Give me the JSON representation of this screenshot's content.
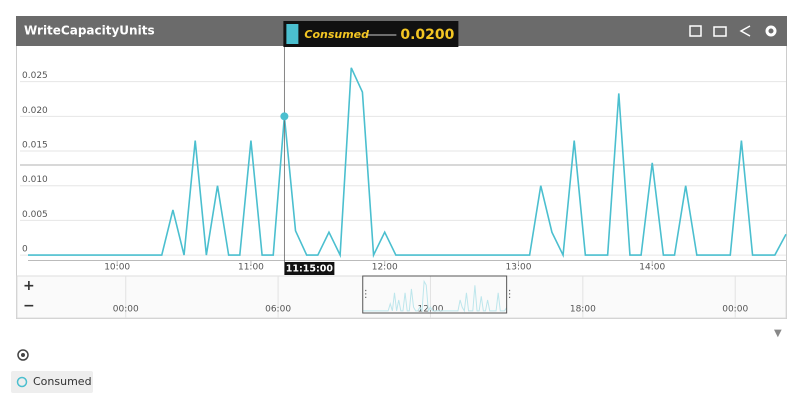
{
  "chart_data": {
    "type": "line",
    "title": "WriteCapacityUnits",
    "x": [
      560,
      565,
      570,
      575,
      580,
      585,
      590,
      595,
      600,
      605,
      610,
      615,
      620,
      625,
      630,
      635,
      640,
      645,
      650,
      655,
      660,
      665,
      670,
      675,
      680,
      685,
      690,
      695,
      700,
      705,
      710,
      715,
      720,
      725,
      730,
      735,
      740,
      745,
      750,
      755,
      760,
      765,
      770,
      775,
      780,
      785,
      790,
      795,
      800,
      805,
      810,
      815,
      820,
      825,
      830,
      835,
      840,
      845,
      850,
      855,
      860,
      865,
      870,
      875,
      880,
      885,
      890,
      895,
      900
    ],
    "series": [
      {
        "name": "Consumed",
        "color": "#4bbfcf",
        "values": [
          0,
          0,
          0,
          0,
          0,
          0,
          0,
          0,
          0,
          0,
          0,
          0,
          0,
          0.0065,
          0,
          0.0165,
          0,
          0.01,
          0,
          0,
          0.0165,
          0,
          0,
          0.02,
          0.0035,
          0,
          0,
          0.0033,
          0,
          0.027,
          0.0235,
          0,
          0.0033,
          0,
          0,
          0,
          0,
          0,
          0,
          0,
          0,
          0,
          0,
          0,
          0,
          0,
          0.01,
          0.0033,
          0,
          0.0165,
          0,
          0,
          0,
          0.0233,
          0,
          0,
          0.0133,
          0,
          0,
          0.01,
          0,
          0,
          0,
          0,
          0.0165,
          0,
          0,
          0,
          0.003
        ]
      }
    ],
    "xlim": [
      560,
      900
    ],
    "xticks": [
      {
        "value": 600,
        "label": "10:00"
      },
      {
        "value": 660,
        "label": "11:00"
      },
      {
        "value": 720,
        "label": "12:00"
      },
      {
        "value": 780,
        "label": "13:00"
      },
      {
        "value": 840,
        "label": "14:00"
      }
    ],
    "ylim": [
      -0.001,
      0.03
    ],
    "yticks": [
      0,
      0.005,
      {
        "value": 0.01,
        "label": "0.010"
      },
      0.015,
      {
        "value": 0.02,
        "label": "0.020"
      },
      0.025
    ],
    "grid": true,
    "crosshair": {
      "x": 675,
      "x_label": "11:15:00",
      "y": 0.02,
      "y_label": "0.0200"
    },
    "navigator": {
      "xlim": [
        -160,
        1560
      ],
      "xticks": [
        {
          "value": 0,
          "label": "00:00"
        },
        {
          "value": 360,
          "label": "06:00"
        },
        {
          "value": 720,
          "label": "12:00"
        },
        {
          "value": 1080,
          "label": "18:00"
        },
        {
          "value": 1440,
          "label": "00:00"
        }
      ],
      "selection": [
        560,
        900
      ]
    }
  }
}
